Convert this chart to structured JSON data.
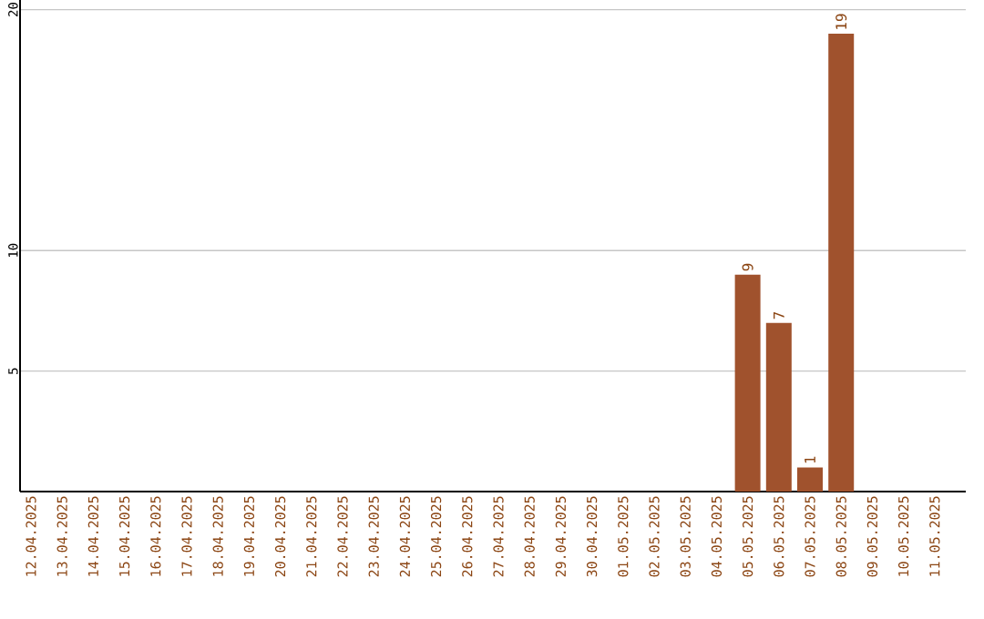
{
  "chart_data": {
    "type": "bar",
    "categories": [
      "12.04.2025",
      "13.04.2025",
      "14.04.2025",
      "15.04.2025",
      "16.04.2025",
      "17.04.2025",
      "18.04.2025",
      "19.04.2025",
      "20.04.2025",
      "21.04.2025",
      "22.04.2025",
      "23.04.2025",
      "24.04.2025",
      "25.04.2025",
      "26.04.2025",
      "27.04.2025",
      "28.04.2025",
      "29.04.2025",
      "30.04.2025",
      "01.05.2025",
      "02.05.2025",
      "03.05.2025",
      "04.05.2025",
      "05.05.2025",
      "06.05.2025",
      "07.05.2025",
      "08.05.2025",
      "09.05.2025",
      "10.05.2025",
      "11.05.2025"
    ],
    "values": [
      0,
      0,
      0,
      0,
      0,
      0,
      0,
      0,
      0,
      0,
      0,
      0,
      0,
      0,
      0,
      0,
      0,
      0,
      0,
      0,
      0,
      0,
      0,
      9,
      7,
      1,
      19,
      0,
      0,
      0
    ],
    "value_labels": [
      null,
      null,
      null,
      null,
      null,
      null,
      null,
      null,
      null,
      null,
      null,
      null,
      null,
      null,
      null,
      null,
      null,
      null,
      null,
      null,
      null,
      null,
      null,
      "9",
      "7",
      "1",
      "19",
      null,
      null,
      null
    ],
    "color": "#a0522d",
    "ylim": [
      0,
      20.4
    ],
    "yticks": [
      5,
      10,
      20
    ],
    "grid": "y"
  }
}
